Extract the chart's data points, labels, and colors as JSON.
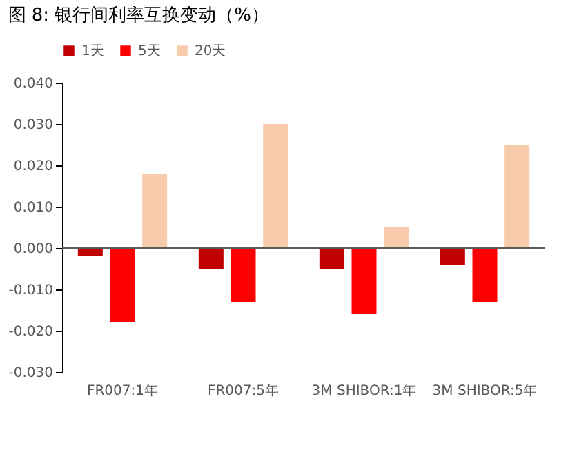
{
  "chart_data": {
    "type": "bar",
    "title": "图 8:    银行间利率互换变动（%）",
    "categories": [
      "FR007:1年",
      "FR007:5年",
      "3M SHIBOR:1年",
      "3M SHIBOR:5年"
    ],
    "series": [
      {
        "name": "1天",
        "color": "#c00000",
        "values": [
          -0.002,
          -0.005,
          -0.005,
          -0.004
        ]
      },
      {
        "name": "5天",
        "color": "#ff0000",
        "values": [
          -0.018,
          -0.013,
          -0.016,
          -0.013
        ]
      },
      {
        "name": "20天",
        "color": "#f8cbad",
        "values": [
          0.018,
          0.03,
          0.005,
          0.025
        ]
      }
    ],
    "ylim": [
      -0.03,
      0.04
    ],
    "yticks": [
      {
        "value": -0.03,
        "label": "-0.030"
      },
      {
        "value": -0.02,
        "label": "-0.020"
      },
      {
        "value": -0.01,
        "label": "-0.010"
      },
      {
        "value": 0.0,
        "label": "0.000"
      },
      {
        "value": 0.01,
        "label": "0.010"
      },
      {
        "value": 0.02,
        "label": "0.020"
      },
      {
        "value": 0.03,
        "label": "0.030"
      },
      {
        "value": 0.04,
        "label": "0.040"
      }
    ],
    "legend": "top"
  }
}
